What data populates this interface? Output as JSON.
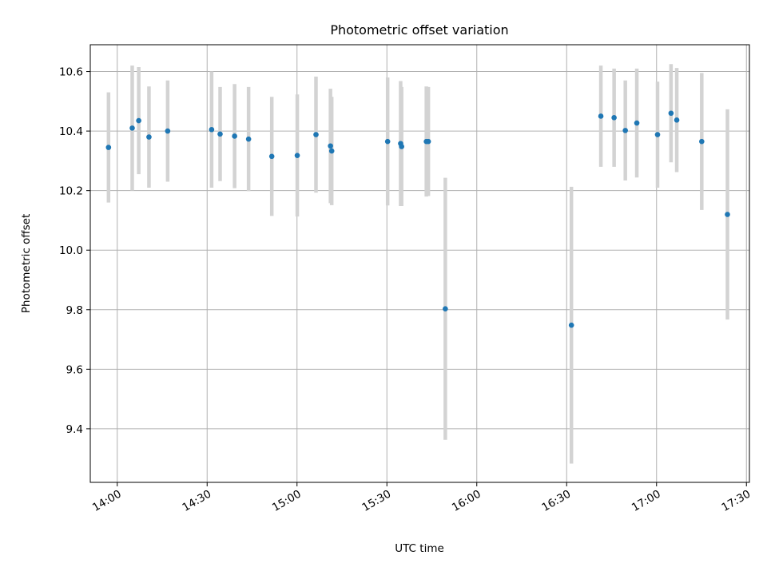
{
  "chart_data": {
    "type": "scatter",
    "title": "Photometric offset variation",
    "xlabel": "UTC time",
    "ylabel": "Photometric offset",
    "xlim": [
      "13:51",
      "17:31"
    ],
    "ylim": [
      9.22,
      10.69
    ],
    "grid": true,
    "x_ticks": [
      "14:00",
      "14:30",
      "15:00",
      "15:30",
      "16:00",
      "16:30",
      "17:00",
      "17:30"
    ],
    "y_ticks": [
      9.4,
      9.6,
      9.8,
      10.0,
      10.2,
      10.4,
      10.6
    ],
    "series": [
      {
        "point_color": "#1f77b4",
        "errorbar_color": "#d3d3d3",
        "points": [
          {
            "x": "13:57:05",
            "y": 10.345,
            "err": 0.185
          },
          {
            "x": "14:05:00",
            "y": 10.41,
            "err": 0.21
          },
          {
            "x": "14:07:10",
            "y": 10.435,
            "err": 0.18
          },
          {
            "x": "14:10:35",
            "y": 10.38,
            "err": 0.17
          },
          {
            "x": "14:16:50",
            "y": 10.4,
            "err": 0.17
          },
          {
            "x": "14:31:30",
            "y": 10.405,
            "err": 0.195
          },
          {
            "x": "14:34:20",
            "y": 10.39,
            "err": 0.158
          },
          {
            "x": "14:39:10",
            "y": 10.383,
            "err": 0.175
          },
          {
            "x": "14:43:50",
            "y": 10.373,
            "err": 0.175
          },
          {
            "x": "14:51:35",
            "y": 10.315,
            "err": 0.2
          },
          {
            "x": "15:00:05",
            "y": 10.318,
            "err": 0.205
          },
          {
            "x": "15:06:20",
            "y": 10.388,
            "err": 0.195
          },
          {
            "x": "15:11:10",
            "y": 10.35,
            "err": 0.192
          },
          {
            "x": "15:11:35",
            "y": 10.333,
            "err": 0.182
          },
          {
            "x": "15:30:15",
            "y": 10.365,
            "err": 0.215
          },
          {
            "x": "15:34:35",
            "y": 10.358,
            "err": 0.21
          },
          {
            "x": "15:34:55",
            "y": 10.348,
            "err": 0.2
          },
          {
            "x": "15:43:10",
            "y": 10.365,
            "err": 0.185
          },
          {
            "x": "15:43:50",
            "y": 10.365,
            "err": 0.183
          },
          {
            "x": "15:49:30",
            "y": 9.803,
            "err": 0.44
          },
          {
            "x": "16:31:35",
            "y": 9.748,
            "err": 0.465
          },
          {
            "x": "16:41:25",
            "y": 10.45,
            "err": 0.17
          },
          {
            "x": "16:45:50",
            "y": 10.445,
            "err": 0.165
          },
          {
            "x": "16:49:35",
            "y": 10.402,
            "err": 0.168
          },
          {
            "x": "16:53:25",
            "y": 10.427,
            "err": 0.183
          },
          {
            "x": "17:00:20",
            "y": 10.388,
            "err": 0.178
          },
          {
            "x": "17:04:50",
            "y": 10.46,
            "err": 0.165
          },
          {
            "x": "17:06:45",
            "y": 10.437,
            "err": 0.175
          },
          {
            "x": "17:15:05",
            "y": 10.365,
            "err": 0.23
          },
          {
            "x": "17:23:40",
            "y": 10.12,
            "err": 0.353
          }
        ]
      }
    ]
  }
}
